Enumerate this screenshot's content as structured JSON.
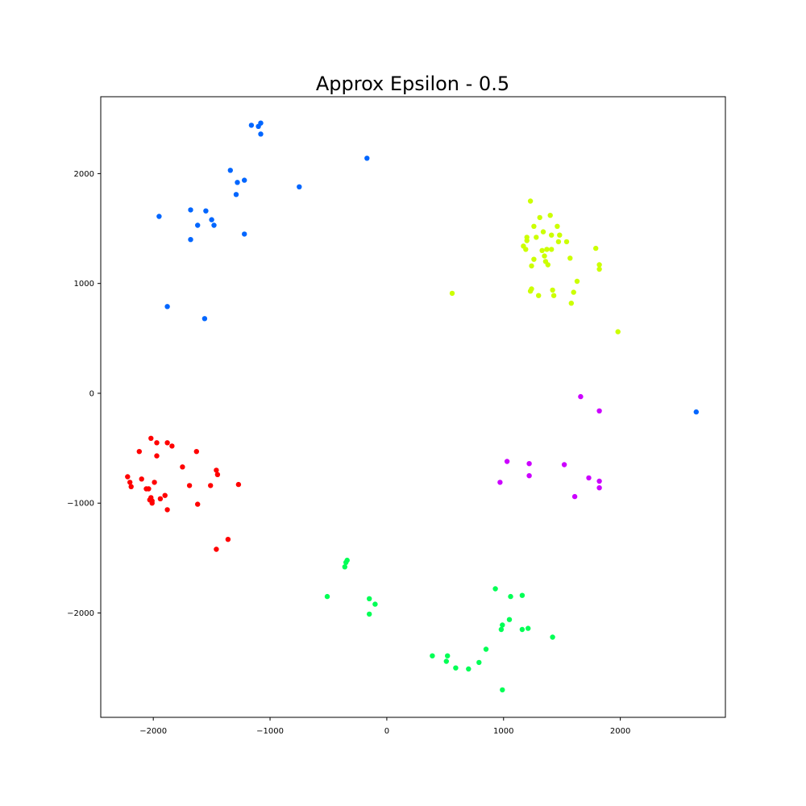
{
  "chart_data": {
    "type": "scatter",
    "title": "Approx Epsilon - 0.5",
    "xlabel": "",
    "ylabel": "",
    "xlim": [
      -2450,
      2900
    ],
    "ylim": [
      -2950,
      2700
    ],
    "grid": false,
    "x_ticks": [
      -2000,
      -1000,
      0,
      1000,
      2000
    ],
    "x_tick_labels": [
      "−2000",
      "−1000",
      "0",
      "1000",
      "2000"
    ],
    "y_ticks": [
      -2000,
      -1000,
      0,
      1000,
      2000
    ],
    "y_tick_labels": [
      "−2000",
      "−1000",
      "0",
      "1000",
      "2000"
    ],
    "series": [
      {
        "color": "#0066ff",
        "points": [
          [
            -1160,
            2440
          ],
          [
            -1100,
            2430
          ],
          [
            -1080,
            2460
          ],
          [
            -1080,
            2360
          ],
          [
            -1340,
            2030
          ],
          [
            -1280,
            1920
          ],
          [
            -1220,
            1940
          ],
          [
            -1290,
            1810
          ],
          [
            -750,
            1880
          ],
          [
            -170,
            2140
          ],
          [
            -1950,
            1610
          ],
          [
            -1680,
            1670
          ],
          [
            -1550,
            1660
          ],
          [
            -1500,
            1580
          ],
          [
            -1480,
            1530
          ],
          [
            -1620,
            1530
          ],
          [
            -1680,
            1400
          ],
          [
            -1220,
            1450
          ],
          [
            -1880,
            790
          ],
          [
            -1560,
            680
          ],
          [
            2650,
            -170
          ]
        ]
      },
      {
        "color": "#ccff00",
        "points": [
          [
            1230,
            1750
          ],
          [
            1400,
            1620
          ],
          [
            1310,
            1600
          ],
          [
            1260,
            1520
          ],
          [
            1460,
            1520
          ],
          [
            1340,
            1470
          ],
          [
            1410,
            1440
          ],
          [
            1480,
            1440
          ],
          [
            1200,
            1420
          ],
          [
            1200,
            1390
          ],
          [
            1170,
            1340
          ],
          [
            1190,
            1310
          ],
          [
            1280,
            1420
          ],
          [
            1470,
            1380
          ],
          [
            1540,
            1380
          ],
          [
            1330,
            1300
          ],
          [
            1370,
            1310
          ],
          [
            1410,
            1310
          ],
          [
            1350,
            1250
          ],
          [
            1360,
            1200
          ],
          [
            1380,
            1170
          ],
          [
            1260,
            1220
          ],
          [
            1240,
            1160
          ],
          [
            1570,
            1230
          ],
          [
            1790,
            1320
          ],
          [
            1820,
            1170
          ],
          [
            1820,
            1130
          ],
          [
            1630,
            1020
          ],
          [
            1240,
            950
          ],
          [
            1230,
            930
          ],
          [
            1300,
            890
          ],
          [
            1420,
            940
          ],
          [
            1430,
            890
          ],
          [
            1600,
            920
          ],
          [
            1580,
            820
          ],
          [
            560,
            910
          ],
          [
            1980,
            560
          ]
        ]
      },
      {
        "color": "#cc00ff",
        "points": [
          [
            1660,
            -30
          ],
          [
            1820,
            -160
          ],
          [
            1030,
            -620
          ],
          [
            1220,
            -640
          ],
          [
            1520,
            -650
          ],
          [
            1220,
            -750
          ],
          [
            970,
            -810
          ],
          [
            1730,
            -770
          ],
          [
            1820,
            -800
          ],
          [
            1820,
            -860
          ],
          [
            1610,
            -940
          ]
        ]
      },
      {
        "color": "#ff0000",
        "points": [
          [
            -2020,
            -410
          ],
          [
            -1970,
            -450
          ],
          [
            -1880,
            -450
          ],
          [
            -1840,
            -480
          ],
          [
            -1630,
            -530
          ],
          [
            -2120,
            -530
          ],
          [
            -1970,
            -570
          ],
          [
            -1750,
            -670
          ],
          [
            -1460,
            -700
          ],
          [
            -1450,
            -740
          ],
          [
            -2220,
            -760
          ],
          [
            -2200,
            -810
          ],
          [
            -2190,
            -850
          ],
          [
            -2100,
            -780
          ],
          [
            -1990,
            -810
          ],
          [
            -1690,
            -840
          ],
          [
            -1510,
            -840
          ],
          [
            -1270,
            -830
          ],
          [
            -2060,
            -870
          ],
          [
            -2040,
            -870
          ],
          [
            -1900,
            -930
          ],
          [
            -2020,
            -950
          ],
          [
            -1940,
            -960
          ],
          [
            -2010,
            -980
          ],
          [
            -2030,
            -970
          ],
          [
            -2010,
            -1000
          ],
          [
            -1620,
            -1010
          ],
          [
            -1880,
            -1060
          ],
          [
            -1360,
            -1330
          ],
          [
            -1460,
            -1420
          ]
        ]
      },
      {
        "color": "#00ff55",
        "points": [
          [
            -340,
            -1520
          ],
          [
            -350,
            -1540
          ],
          [
            -360,
            -1580
          ],
          [
            -510,
            -1850
          ],
          [
            -150,
            -1870
          ],
          [
            -100,
            -1920
          ],
          [
            -150,
            -2010
          ],
          [
            930,
            -1780
          ],
          [
            1060,
            -1850
          ],
          [
            1160,
            -1840
          ],
          [
            1050,
            -2060
          ],
          [
            990,
            -2110
          ],
          [
            980,
            -2150
          ],
          [
            1160,
            -2150
          ],
          [
            1210,
            -2140
          ],
          [
            1420,
            -2220
          ],
          [
            850,
            -2330
          ],
          [
            390,
            -2390
          ],
          [
            520,
            -2390
          ],
          [
            510,
            -2440
          ],
          [
            790,
            -2450
          ],
          [
            590,
            -2500
          ],
          [
            700,
            -2510
          ],
          [
            990,
            -2700
          ]
        ]
      }
    ]
  }
}
